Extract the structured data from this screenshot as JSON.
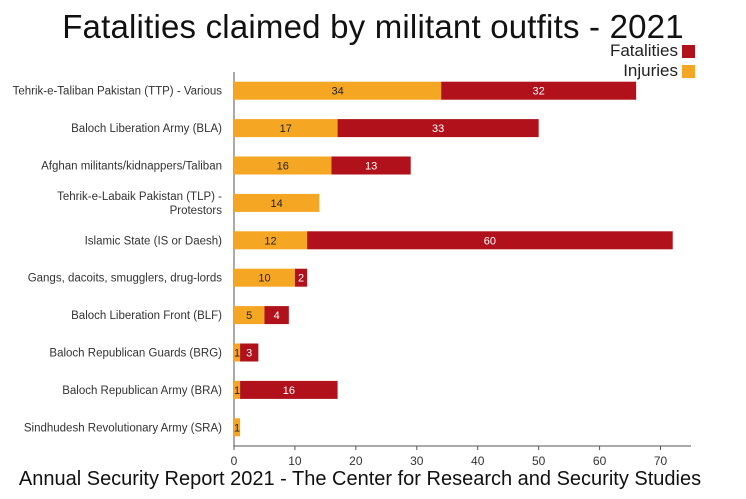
{
  "title": "Fatalities claimed by militant outfits - 2021",
  "footer": "Annual Security Report 2021 - The Center for Research and Security Studies",
  "legend": {
    "fatalities_label": "Fatalities",
    "injuries_label": "Injuries"
  },
  "colors": {
    "injuries": "#f5a623",
    "fatalities": "#b0111b",
    "axis": "#555555",
    "text": "#333333"
  },
  "chart_data": {
    "type": "bar",
    "orientation": "horizontal",
    "stacked": true,
    "title": "Fatalities claimed by militant outfits - 2021",
    "xlabel": "",
    "ylabel": "",
    "xlim": [
      0,
      75
    ],
    "xticks": [
      0,
      10,
      20,
      30,
      40,
      50,
      60,
      70
    ],
    "grid": false,
    "legend_position": "top-right",
    "categories": [
      "Tehrik-e-Taliban Pakistan (TTP) - Various",
      "Baloch Liberation Army (BLA)",
      "Afghan militants/kidnappers/Taliban",
      "Tehrik-e-Labaik Pakistan (TLP) - Protestors",
      "Islamic State (IS or Daesh)",
      "Gangs, dacoits, smugglers, drug-lords",
      "Baloch Liberation Front (BLF)",
      "Baloch Republican Guards (BRG)",
      "Baloch Republican Army (BRA)",
      "Sindhudesh Revolutionary Army (SRA)"
    ],
    "series": [
      {
        "name": "Injuries",
        "color": "#f5a623",
        "values": [
          34,
          17,
          16,
          14,
          12,
          10,
          5,
          1,
          1,
          1
        ]
      },
      {
        "name": "Fatalities",
        "color": "#b0111b",
        "values": [
          32,
          33,
          13,
          0,
          60,
          2,
          4,
          3,
          16,
          0
        ]
      }
    ]
  }
}
